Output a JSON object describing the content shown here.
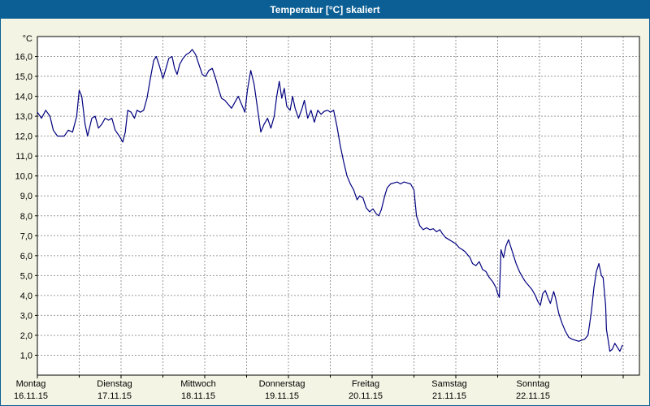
{
  "window": {
    "title": "Temperatur [°C] skaliert"
  },
  "colors": {
    "titlebar": "#0b5f94",
    "background": "#f4f4e4",
    "plot_bg": "#ffffff",
    "grid": "#9a9a9a",
    "axis": "#000000",
    "line": "#00007f"
  },
  "chart_data": {
    "type": "line",
    "title": "Temperatur [°C] skaliert",
    "xlabel": "",
    "ylabel": "°C",
    "y_unit_label": "°C",
    "ylim": [
      0,
      17
    ],
    "xlim_days": [
      0,
      7.19
    ],
    "grid": "on",
    "legend": "none",
    "x_gridline_interval_days": 0.5,
    "y_ticks": [
      [
        1,
        "1,0"
      ],
      [
        2,
        "2,0"
      ],
      [
        3,
        "3,0"
      ],
      [
        4,
        "4,0"
      ],
      [
        5,
        "5,0"
      ],
      [
        6,
        "6,0"
      ],
      [
        7,
        "7,0"
      ],
      [
        8,
        "8,0"
      ],
      [
        9,
        "9,0"
      ],
      [
        10,
        "10,0"
      ],
      [
        11,
        "11,0"
      ],
      [
        12,
        "12,0"
      ],
      [
        13,
        "13,0"
      ],
      [
        14,
        "14,0"
      ],
      [
        15,
        "15,0"
      ],
      [
        16,
        "16,0"
      ]
    ],
    "days": [
      {
        "name": "Montag",
        "date": "16.11.15"
      },
      {
        "name": "Dienstag",
        "date": "17.11.15"
      },
      {
        "name": "Mittwoch",
        "date": "18.11.15"
      },
      {
        "name": "Donnerstag",
        "date": "19.11.15"
      },
      {
        "name": "Freitag",
        "date": "20.11.15"
      },
      {
        "name": "Samstag",
        "date": "21.11.15"
      },
      {
        "name": "Sonntag",
        "date": "22.11.15"
      }
    ],
    "series": [
      {
        "name": "Temperatur",
        "color": "#00007f",
        "points": [
          [
            0.0,
            13.2
          ],
          [
            0.05,
            12.9
          ],
          [
            0.1,
            13.3
          ],
          [
            0.15,
            13.0
          ],
          [
            0.19,
            12.3
          ],
          [
            0.24,
            12.0
          ],
          [
            0.32,
            12.0
          ],
          [
            0.37,
            12.3
          ],
          [
            0.42,
            12.2
          ],
          [
            0.47,
            13.0
          ],
          [
            0.5,
            14.3
          ],
          [
            0.53,
            14.0
          ],
          [
            0.57,
            12.6
          ],
          [
            0.6,
            12.0
          ],
          [
            0.65,
            12.9
          ],
          [
            0.69,
            13.0
          ],
          [
            0.73,
            12.4
          ],
          [
            0.77,
            12.6
          ],
          [
            0.81,
            12.9
          ],
          [
            0.85,
            12.8
          ],
          [
            0.89,
            12.9
          ],
          [
            0.93,
            12.3
          ],
          [
            0.98,
            12.0
          ],
          [
            1.02,
            11.7
          ],
          [
            1.05,
            12.2
          ],
          [
            1.08,
            13.3
          ],
          [
            1.12,
            13.2
          ],
          [
            1.16,
            12.9
          ],
          [
            1.19,
            13.3
          ],
          [
            1.23,
            13.2
          ],
          [
            1.27,
            13.3
          ],
          [
            1.31,
            13.9
          ],
          [
            1.35,
            14.9
          ],
          [
            1.39,
            15.8
          ],
          [
            1.42,
            16.0
          ],
          [
            1.46,
            15.5
          ],
          [
            1.5,
            14.9
          ],
          [
            1.53,
            15.3
          ],
          [
            1.57,
            15.9
          ],
          [
            1.61,
            16.0
          ],
          [
            1.64,
            15.4
          ],
          [
            1.67,
            15.1
          ],
          [
            1.7,
            15.6
          ],
          [
            1.74,
            15.9
          ],
          [
            1.78,
            16.1
          ],
          [
            1.82,
            16.2
          ],
          [
            1.85,
            16.35
          ],
          [
            1.89,
            16.1
          ],
          [
            1.93,
            15.6
          ],
          [
            1.97,
            15.1
          ],
          [
            2.01,
            15.0
          ],
          [
            2.05,
            15.3
          ],
          [
            2.09,
            15.4
          ],
          [
            2.13,
            14.9
          ],
          [
            2.17,
            14.3
          ],
          [
            2.2,
            13.9
          ],
          [
            2.24,
            13.8
          ],
          [
            2.28,
            13.6
          ],
          [
            2.32,
            13.4
          ],
          [
            2.36,
            13.7
          ],
          [
            2.4,
            14.0
          ],
          [
            2.44,
            13.6
          ],
          [
            2.48,
            13.2
          ],
          [
            2.51,
            14.3
          ],
          [
            2.55,
            15.3
          ],
          [
            2.59,
            14.6
          ],
          [
            2.63,
            13.4
          ],
          [
            2.67,
            12.2
          ],
          [
            2.71,
            12.6
          ],
          [
            2.75,
            12.9
          ],
          [
            2.79,
            12.4
          ],
          [
            2.83,
            13.0
          ],
          [
            2.86,
            14.0
          ],
          [
            2.89,
            14.75
          ],
          [
            2.92,
            13.9
          ],
          [
            2.95,
            14.4
          ],
          [
            2.98,
            13.5
          ],
          [
            3.02,
            13.3
          ],
          [
            3.05,
            14.0
          ],
          [
            3.08,
            13.4
          ],
          [
            3.12,
            12.9
          ],
          [
            3.16,
            13.35
          ],
          [
            3.19,
            13.8
          ],
          [
            3.23,
            12.9
          ],
          [
            3.27,
            13.3
          ],
          [
            3.31,
            12.7
          ],
          [
            3.35,
            13.3
          ],
          [
            3.39,
            13.1
          ],
          [
            3.43,
            13.25
          ],
          [
            3.47,
            13.3
          ],
          [
            3.5,
            13.2
          ],
          [
            3.54,
            13.3
          ],
          [
            3.58,
            12.5
          ],
          [
            3.62,
            11.5
          ],
          [
            3.66,
            10.7
          ],
          [
            3.7,
            10.0
          ],
          [
            3.74,
            9.6
          ],
          [
            3.78,
            9.3
          ],
          [
            3.82,
            8.8
          ],
          [
            3.85,
            9.0
          ],
          [
            3.89,
            8.9
          ],
          [
            3.93,
            8.4
          ],
          [
            3.97,
            8.2
          ],
          [
            4.01,
            8.35
          ],
          [
            4.05,
            8.1
          ],
          [
            4.08,
            8.0
          ],
          [
            4.11,
            8.3
          ],
          [
            4.15,
            9.0
          ],
          [
            4.18,
            9.4
          ],
          [
            4.22,
            9.6
          ],
          [
            4.26,
            9.65
          ],
          [
            4.3,
            9.7
          ],
          [
            4.34,
            9.6
          ],
          [
            4.38,
            9.7
          ],
          [
            4.42,
            9.65
          ],
          [
            4.46,
            9.6
          ],
          [
            4.5,
            9.3
          ],
          [
            4.53,
            8.0
          ],
          [
            4.57,
            7.5
          ],
          [
            4.61,
            7.3
          ],
          [
            4.65,
            7.4
          ],
          [
            4.69,
            7.3
          ],
          [
            4.73,
            7.35
          ],
          [
            4.77,
            7.2
          ],
          [
            4.81,
            7.3
          ],
          [
            4.84,
            7.1
          ],
          [
            4.88,
            6.9
          ],
          [
            4.92,
            6.8
          ],
          [
            4.96,
            6.7
          ],
          [
            5.0,
            6.6
          ],
          [
            5.04,
            6.4
          ],
          [
            5.08,
            6.3
          ],
          [
            5.11,
            6.2
          ],
          [
            5.13,
            6.1
          ],
          [
            5.17,
            5.9
          ],
          [
            5.2,
            5.6
          ],
          [
            5.24,
            5.5
          ],
          [
            5.28,
            5.7
          ],
          [
            5.32,
            5.3
          ],
          [
            5.36,
            5.2
          ],
          [
            5.4,
            4.9
          ],
          [
            5.44,
            4.7
          ],
          [
            5.48,
            4.4
          ],
          [
            5.5,
            4.1
          ],
          [
            5.52,
            3.9
          ],
          [
            5.54,
            6.3
          ],
          [
            5.57,
            5.9
          ],
          [
            5.6,
            6.5
          ],
          [
            5.63,
            6.8
          ],
          [
            5.66,
            6.4
          ],
          [
            5.69,
            6.0
          ],
          [
            5.72,
            5.6
          ],
          [
            5.76,
            5.2
          ],
          [
            5.8,
            4.9
          ],
          [
            5.83,
            4.7
          ],
          [
            5.87,
            4.5
          ],
          [
            5.91,
            4.3
          ],
          [
            5.95,
            4.0
          ],
          [
            5.98,
            3.7
          ],
          [
            6.01,
            3.5
          ],
          [
            6.04,
            4.1
          ],
          [
            6.07,
            4.25
          ],
          [
            6.1,
            3.9
          ],
          [
            6.13,
            3.6
          ],
          [
            6.17,
            4.2
          ],
          [
            6.19,
            3.9
          ],
          [
            6.23,
            3.1
          ],
          [
            6.27,
            2.6
          ],
          [
            6.31,
            2.2
          ],
          [
            6.35,
            1.9
          ],
          [
            6.39,
            1.8
          ],
          [
            6.43,
            1.75
          ],
          [
            6.47,
            1.7
          ],
          [
            6.5,
            1.75
          ],
          [
            6.54,
            1.8
          ],
          [
            6.58,
            2.0
          ],
          [
            6.62,
            3.2
          ],
          [
            6.65,
            4.4
          ],
          [
            6.68,
            5.2
          ],
          [
            6.71,
            5.6
          ],
          [
            6.74,
            5.0
          ],
          [
            6.76,
            4.9
          ],
          [
            6.79,
            3.5
          ],
          [
            6.8,
            2.3
          ],
          [
            6.83,
            1.5
          ],
          [
            6.84,
            1.2
          ],
          [
            6.87,
            1.3
          ],
          [
            6.9,
            1.6
          ],
          [
            6.93,
            1.4
          ],
          [
            6.96,
            1.2
          ],
          [
            6.99,
            1.5
          ]
        ]
      }
    ]
  }
}
